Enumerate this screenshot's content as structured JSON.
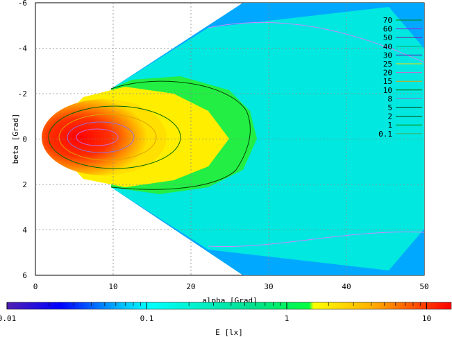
{
  "chart_data": {
    "type": "heatmap",
    "x_axis": {
      "label": "alpha [Grad]",
      "range": [
        0,
        50
      ],
      "ticks": [
        "0",
        "10",
        "20",
        "30",
        "40",
        "50"
      ]
    },
    "y_axis": {
      "label": "beta [Grad]",
      "range": [
        -6,
        6
      ],
      "ticks": [
        "-6",
        "-4",
        "-2",
        "0",
        "2",
        "4",
        "6"
      ],
      "inverted": true
    },
    "grid": true,
    "contour_levels": [
      "70",
      "60",
      "50",
      "40",
      "30",
      "25",
      "20",
      "15",
      "10",
      "8",
      "5",
      "2",
      "1",
      "0.1"
    ],
    "contour_colors": [
      "#008800",
      "#8a2be2",
      "#7a1fa0",
      "#00aa66",
      "#6a0dad",
      "#ffd700",
      "#cc66cc",
      "#e0a000",
      "#006600",
      "#9370db",
      "#003300",
      "#004400",
      "#008800",
      "#3cb371"
    ],
    "colorbar": {
      "label": "E [lx]",
      "scale": "log",
      "range": [
        0.01,
        15
      ],
      "ticks": [
        "0.01",
        "0.1",
        "1",
        "10"
      ],
      "colors": [
        "#5020b0",
        "#0000ff",
        "#0090ff",
        "#00ffff",
        "#00e0b0",
        "#00ff40",
        "#ffff00",
        "#ffc000",
        "#ff7000",
        "#ff0000"
      ]
    },
    "legend_position": "right"
  }
}
